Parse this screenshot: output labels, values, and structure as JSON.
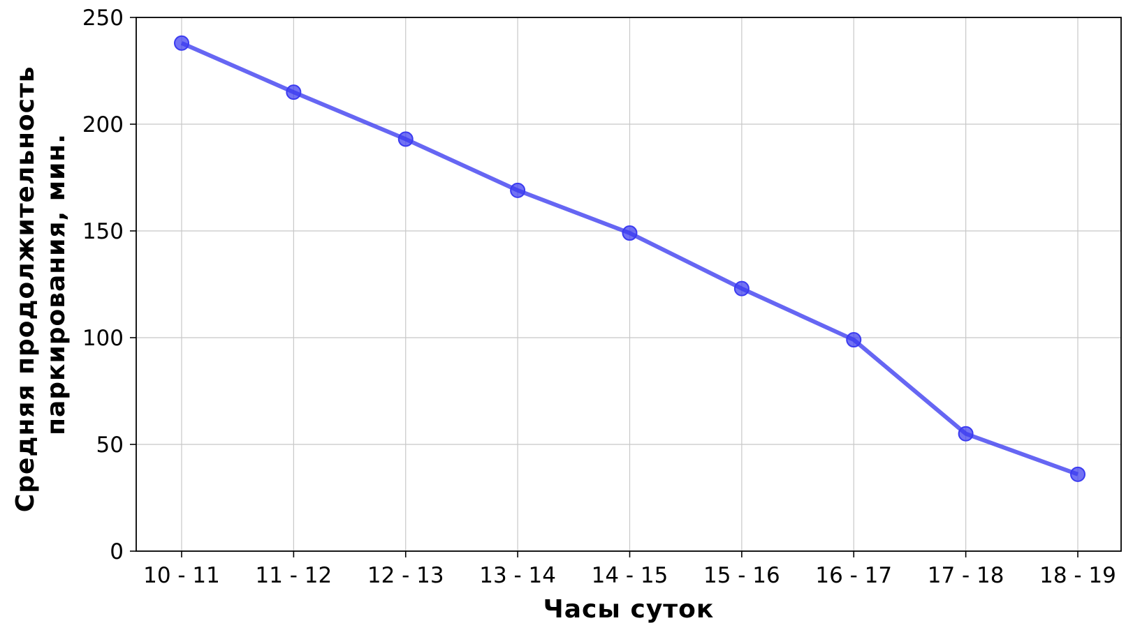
{
  "chart_data": {
    "type": "line",
    "title": "",
    "xlabel": "Часы суток",
    "ylabel_lines": [
      "Средняя продолжительность",
      "паркирования, мин."
    ],
    "categories": [
      "10 - 11",
      "11 - 12",
      "12 - 13",
      "13 - 14",
      "14 - 15",
      "15 - 16",
      "16 - 17",
      "17 - 18",
      "18 - 19"
    ],
    "series": [
      {
        "values": [
          238,
          215,
          193,
          169,
          149,
          123,
          99,
          55,
          36
        ],
        "color": "#3b3bf0"
      }
    ],
    "ylim": [
      0,
      250
    ],
    "yticks": [
      0,
      50,
      100,
      150,
      200,
      250
    ],
    "grid": true,
    "legend": "none"
  }
}
